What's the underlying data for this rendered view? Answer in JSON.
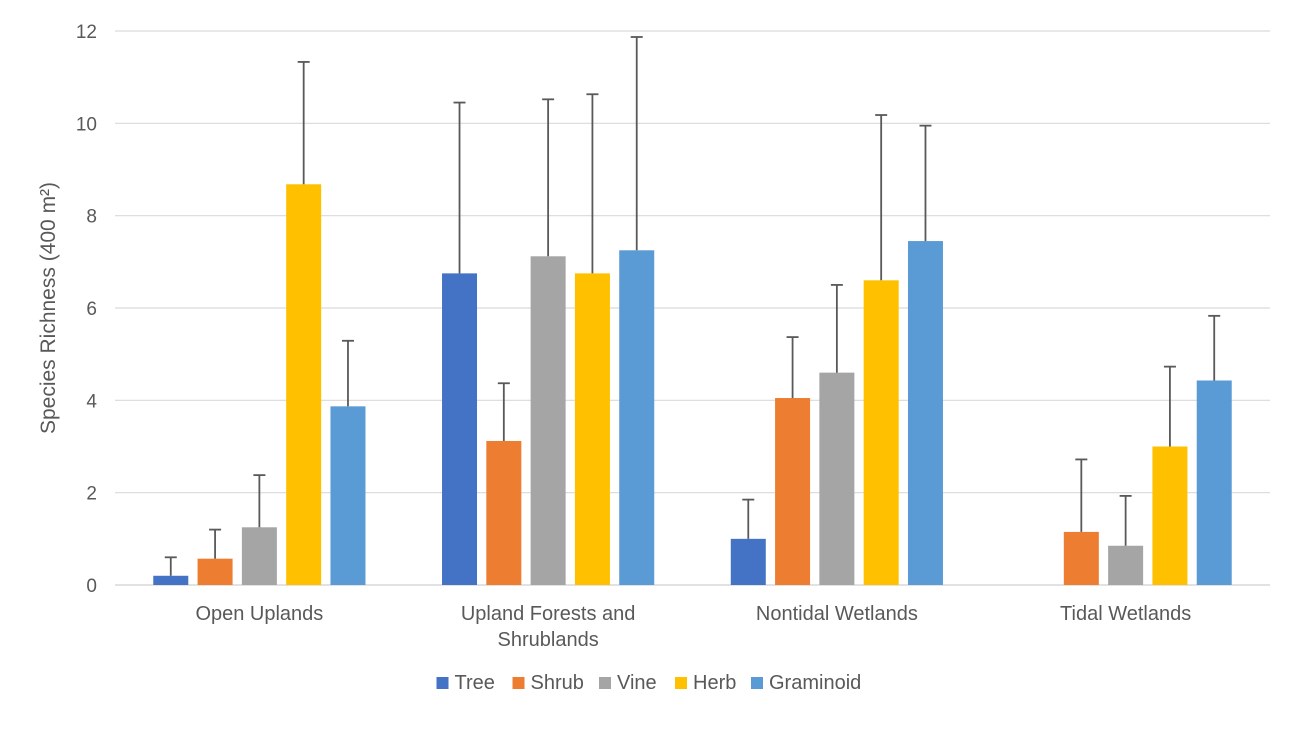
{
  "chart_data": {
    "type": "bar",
    "title": "",
    "xlabel": "",
    "ylabel": "Species Richness (400 m²)",
    "ylim": [
      0,
      12
    ],
    "yticks": [
      0,
      2,
      4,
      6,
      8,
      10,
      12
    ],
    "grid": true,
    "legend_position": "bottom",
    "error_bars": true,
    "categories": [
      [
        "Open Uplands"
      ],
      [
        "Upland Forests and",
        "Shrublands"
      ],
      [
        "Nontidal Wetlands"
      ],
      [
        "Tidal Wetlands"
      ]
    ],
    "series": [
      {
        "name": "Tree",
        "color": "#4472C4",
        "values": [
          0.2,
          6.75,
          1.0,
          0.0
        ],
        "errors": [
          0.4,
          3.7,
          0.85,
          0.0
        ]
      },
      {
        "name": "Shrub",
        "color": "#ED7D31",
        "values": [
          0.57,
          3.12,
          4.05,
          1.15
        ],
        "errors": [
          0.63,
          1.25,
          1.32,
          1.57
        ]
      },
      {
        "name": "Vine",
        "color": "#A5A5A5",
        "values": [
          1.25,
          7.12,
          4.6,
          0.85
        ],
        "errors": [
          1.13,
          3.4,
          1.9,
          1.08
        ]
      },
      {
        "name": "Herb",
        "color": "#FFC000",
        "values": [
          8.68,
          6.75,
          6.6,
          3.0
        ],
        "errors": [
          2.65,
          3.88,
          3.58,
          1.73
        ]
      },
      {
        "name": "Graminoid",
        "color": "#5B9BD5",
        "values": [
          3.87,
          7.25,
          7.45,
          4.43
        ],
        "errors": [
          1.42,
          4.62,
          2.5,
          1.4
        ]
      }
    ]
  }
}
